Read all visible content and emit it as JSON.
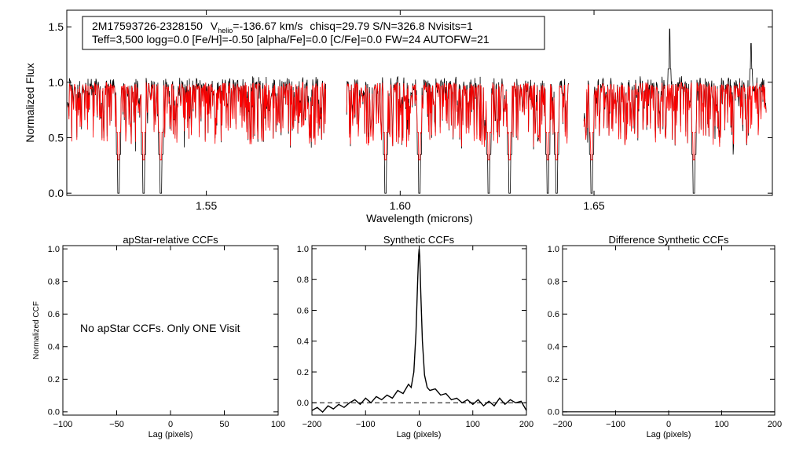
{
  "chart_data": [
    {
      "type": "line",
      "title": "",
      "info_line1": {
        "id": "2M17593726-2328150",
        "v_label": "V",
        "v_sub": "helio",
        "v_value": "=-136.67 km/s",
        "rest": "chisq=29.79  S/N=326.8  Nvisits=1"
      },
      "info_line2": "Teff=3,500 logg=0.0 [Fe/H]=-0.50 [alpha/Fe]=0.0 [C/Fe]=0.0 FW=24 AUTOFW=21",
      "xlabel": "Wavelength (microns)",
      "ylabel": "Normalized Flux",
      "xlim": [
        1.514,
        1.696
      ],
      "ylim": [
        -0.02,
        1.65
      ],
      "xticks": [
        1.55,
        1.6,
        1.65
      ],
      "xtick_labels": [
        "1.55",
        "1.60",
        "1.65"
      ],
      "yticks": [
        0.0,
        0.5,
        1.0,
        1.5
      ],
      "ytick_labels": [
        "0.0",
        "0.5",
        "1.0",
        "1.5"
      ],
      "chips": [
        [
          1.5142,
          1.5808
        ],
        [
          1.5862,
          1.6434
        ],
        [
          1.6474,
          1.6944
        ]
      ],
      "deep_lines": [
        1.5273,
        1.5338,
        1.5383,
        1.5962,
        1.605,
        1.6228,
        1.6282,
        1.6381,
        1.6403,
        1.6494,
        1.6758
      ],
      "emission_lines": [
        {
          "x": 1.6695,
          "y": 1.48
        },
        {
          "x": 1.6905,
          "y": 1.35
        }
      ],
      "series": [
        {
          "name": "observed spectrum",
          "color": "#000000"
        },
        {
          "name": "model spectrum",
          "color": "#ff0000"
        }
      ]
    },
    {
      "type": "text-panel",
      "title": "apStar-relative CCFs",
      "xlabel": "Lag (pixels)",
      "ylabel": "Normalized CCF",
      "xlim": [
        -100,
        100
      ],
      "ylim": [
        -0.02,
        1.02
      ],
      "xticks": [
        -100,
        -50,
        0,
        50,
        100
      ],
      "xtick_labels": [
        "−100",
        "−50",
        "0",
        "50",
        "100"
      ],
      "yticks": [
        0.0,
        0.2,
        0.4,
        0.6,
        0.8,
        1.0
      ],
      "ytick_labels": [
        "0.0",
        "0.2",
        "0.4",
        "0.6",
        "0.8",
        "1.0"
      ],
      "message": "No apStar CCFs.  Only ONE Visit"
    },
    {
      "type": "line",
      "title": "Synthetic CCFs",
      "xlabel": "Lag (pixels)",
      "xlim": [
        -200,
        200
      ],
      "ylim": [
        -0.08,
        1.02
      ],
      "xticks": [
        -200,
        -100,
        0,
        100,
        200
      ],
      "xtick_labels": [
        "−200",
        "−100",
        "0",
        "100",
        "200"
      ],
      "yticks": [
        0.0,
        0.2,
        0.4,
        0.6,
        0.8,
        1.0
      ],
      "ytick_labels": [
        "0.0",
        "0.2",
        "0.4",
        "0.6",
        "0.8",
        "1.0"
      ],
      "baseline": 0.0,
      "peak": {
        "x": 0,
        "y": 1.0
      },
      "series": [
        {
          "name": "synthetic CCF",
          "color": "#000000",
          "x": [
            -200,
            -190,
            -180,
            -170,
            -160,
            -150,
            -140,
            -130,
            -120,
            -110,
            -100,
            -90,
            -80,
            -70,
            -60,
            -50,
            -40,
            -30,
            -20,
            -15,
            -10,
            -6,
            -3,
            -1,
            0,
            1,
            3,
            6,
            10,
            15,
            20,
            30,
            40,
            50,
            60,
            70,
            80,
            90,
            100,
            110,
            120,
            130,
            140,
            150,
            160,
            170,
            180,
            190,
            200
          ],
          "y": [
            -0.05,
            -0.03,
            -0.06,
            -0.02,
            -0.04,
            -0.01,
            -0.03,
            0.0,
            0.02,
            -0.01,
            0.03,
            0.0,
            0.04,
            0.02,
            0.05,
            0.03,
            0.08,
            0.06,
            0.12,
            0.1,
            0.2,
            0.45,
            0.78,
            0.96,
            1.0,
            0.95,
            0.72,
            0.4,
            0.18,
            0.1,
            0.08,
            0.09,
            0.05,
            0.06,
            0.02,
            0.03,
            0.0,
            0.02,
            -0.01,
            0.02,
            -0.02,
            0.01,
            -0.02,
            0.03,
            -0.01,
            0.02,
            0.0,
            0.01,
            -0.05
          ]
        }
      ]
    },
    {
      "type": "line",
      "title": "Difference Synthetic CCFs",
      "xlabel": "Lag (pixels)",
      "xlim": [
        -200,
        200
      ],
      "ylim": [
        -0.02,
        1.02
      ],
      "xticks": [
        -200,
        -100,
        0,
        100,
        200
      ],
      "xtick_labels": [
        "−200",
        "−100",
        "0",
        "100",
        "200"
      ],
      "yticks": [
        0.0,
        0.2,
        0.4,
        0.6,
        0.8,
        1.0
      ],
      "ytick_labels": [
        "0.0",
        "0.2",
        "0.4",
        "0.6",
        "0.8",
        "1.0"
      ],
      "series": [
        {
          "name": "difference CCF",
          "color": "#000000",
          "x": [
            -200,
            200
          ],
          "y": [
            0.0,
            0.0
          ]
        }
      ]
    }
  ]
}
